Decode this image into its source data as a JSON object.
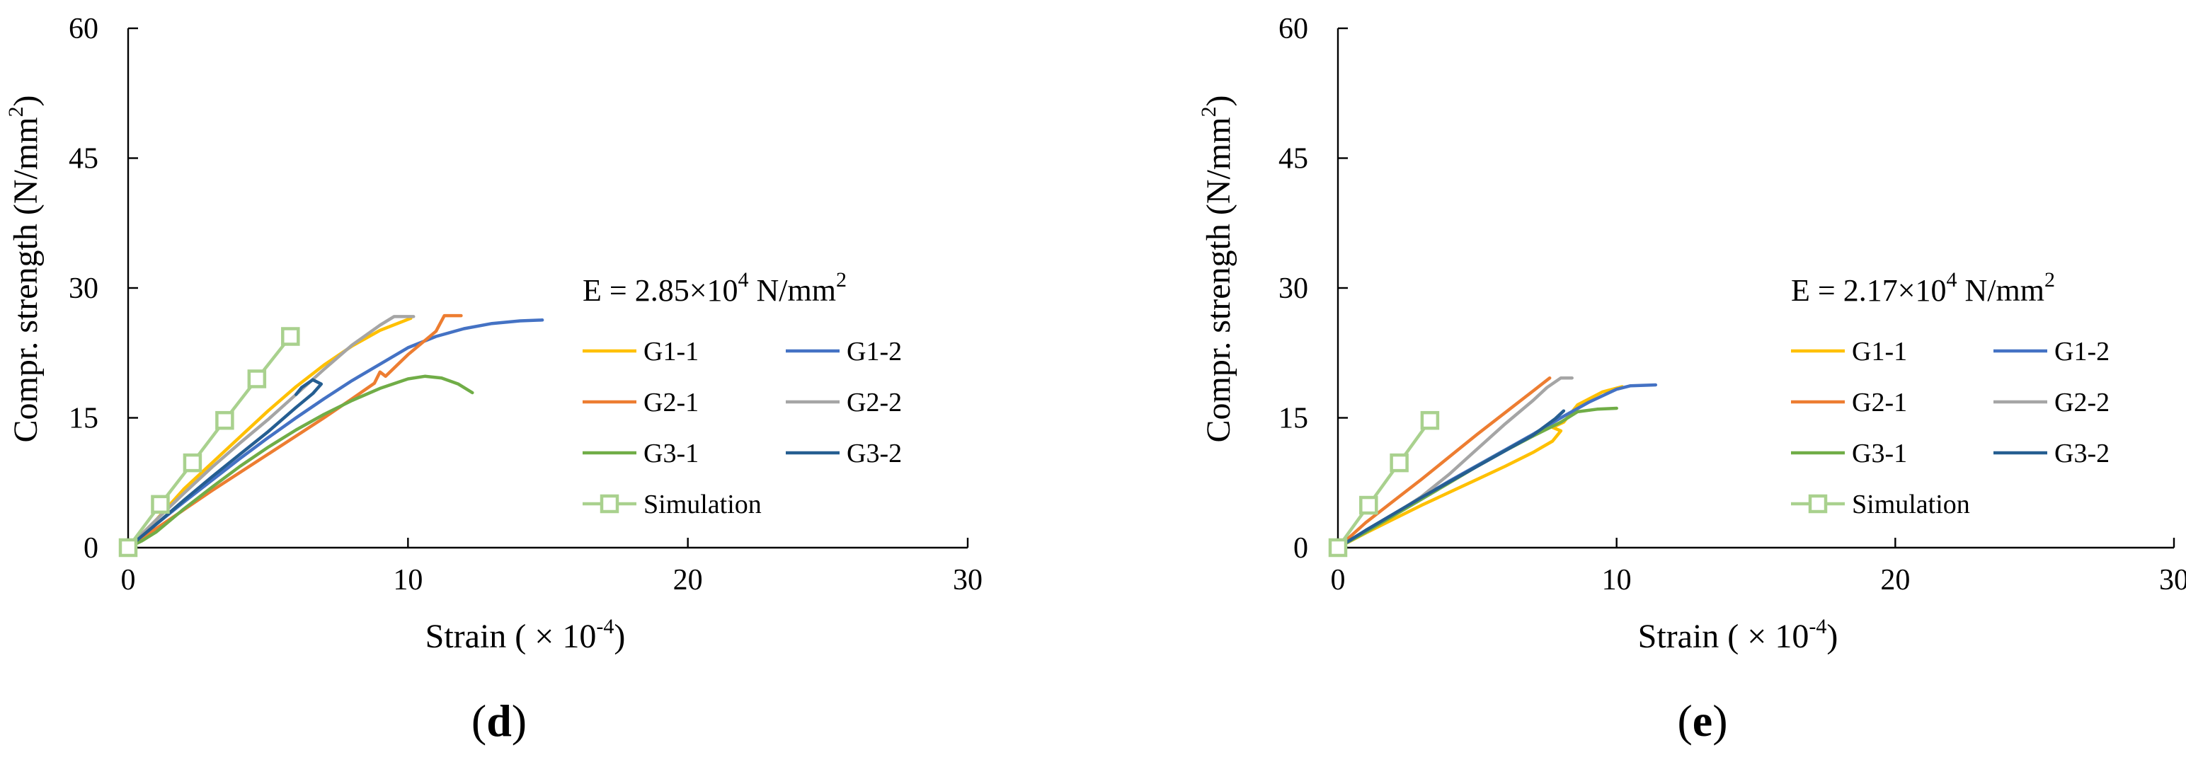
{
  "colors": {
    "G1-1": "#FFC000",
    "G1-2": "#4472C4",
    "G2-1": "#ED7D31",
    "G2-2": "#A5A5A5",
    "G3-1": "#70AD47",
    "G3-2": "#255E91",
    "Simulation": "#A9D18E"
  },
  "chart_data": [
    {
      "type": "line",
      "panel_label": "(d)",
      "panel_letter": "d",
      "xlabel": "Strain ( × 10",
      "xlabel_exp": "-4",
      "xlabel_close": ")",
      "ylabel": "Compr. strength (N/mm",
      "ylabel_exp": "2",
      "ylabel_close": ")",
      "xlim": [
        0,
        30
      ],
      "ylim": [
        0,
        60
      ],
      "xticks": [
        0,
        10,
        20,
        30
      ],
      "yticks": [
        0,
        15,
        30,
        45,
        60
      ],
      "annotation": {
        "prefix": "E = 2.85×10",
        "exp": "4",
        "suffix": " N/mm",
        "suffix_exp": "2"
      },
      "series": [
        {
          "name": "G1-1",
          "x": [
            0,
            1,
            2,
            3,
            4,
            5,
            6,
            7,
            8,
            9,
            10.1
          ],
          "y": [
            0,
            3.2,
            6.8,
            9.8,
            12.8,
            15.8,
            18.6,
            21.1,
            23.3,
            25.1,
            26.5
          ]
        },
        {
          "name": "G1-2",
          "x": [
            0,
            1,
            2,
            3,
            4,
            5,
            6,
            7,
            8,
            9,
            10,
            11,
            12,
            13,
            14,
            14.8
          ],
          "y": [
            0,
            2.7,
            5.3,
            7.8,
            10.3,
            12.7,
            15.0,
            17.2,
            19.3,
            21.2,
            23.1,
            24.4,
            25.3,
            25.9,
            26.2,
            26.3
          ]
        },
        {
          "name": "G2-1",
          "x": [
            0,
            1,
            2,
            3,
            4,
            5,
            6,
            7,
            8,
            8.8,
            9,
            9.2,
            10,
            11,
            11.3,
            11.9
          ],
          "y": [
            0,
            2.2,
            4.4,
            6.6,
            8.7,
            10.8,
            12.9,
            15.0,
            17.2,
            19.0,
            20.3,
            19.8,
            22.3,
            25.0,
            26.8,
            26.8
          ]
        },
        {
          "name": "G2-2",
          "x": [
            0,
            1,
            2,
            3,
            4,
            5,
            6,
            7,
            8,
            9,
            9.5,
            10.2
          ],
          "y": [
            0,
            3.2,
            6.3,
            9.3,
            12.1,
            14.8,
            17.7,
            20.6,
            23.4,
            25.7,
            26.7,
            26.7
          ]
        },
        {
          "name": "G3-1",
          "x": [
            0,
            0.5,
            1,
            2,
            3,
            4,
            5,
            6,
            7,
            8,
            9,
            10,
            10.6,
            11.2,
            11.8,
            12.3
          ],
          "y": [
            0,
            0.8,
            1.8,
            4.5,
            7.0,
            9.4,
            11.6,
            13.6,
            15.4,
            17.0,
            18.4,
            19.5,
            19.8,
            19.6,
            18.9,
            17.9
          ]
        },
        {
          "name": "G3-2",
          "x": [
            0,
            1,
            2,
            3,
            4,
            5,
            6,
            6.6,
            6.9,
            6.6,
            6.2,
            6.0
          ],
          "y": [
            0,
            2.7,
            5.5,
            8.2,
            10.8,
            13.4,
            16.2,
            17.8,
            18.9,
            19.4,
            18.5,
            17.7
          ]
        }
      ],
      "simulation": {
        "name": "Simulation",
        "x": [
          0,
          1.15,
          2.3,
          3.45,
          4.6,
          5.8
        ],
        "y": [
          0,
          5.0,
          9.8,
          14.7,
          19.5,
          24.4
        ]
      }
    },
    {
      "type": "line",
      "panel_label": "(e)",
      "panel_letter": "e",
      "xlabel": "Strain ( × 10",
      "xlabel_exp": "-4",
      "xlabel_close": ")",
      "ylabel": "Compr. strength (N/mm",
      "ylabel_exp": "2",
      "ylabel_close": ")",
      "xlim": [
        0,
        30
      ],
      "ylim": [
        0,
        60
      ],
      "xticks": [
        0,
        10,
        20,
        30
      ],
      "yticks": [
        0,
        15,
        30,
        45,
        60
      ],
      "annotation": {
        "prefix": "E = 2.17×10",
        "exp": "4",
        "suffix": " N/mm",
        "suffix_exp": "2"
      },
      "series": [
        {
          "name": "G1-1",
          "x": [
            0,
            1,
            2,
            3,
            4,
            5,
            6,
            7,
            7.7,
            8.0,
            7.7,
            8.1,
            8.6,
            9.5,
            10.2
          ],
          "y": [
            0,
            1.7,
            3.3,
            4.9,
            6.4,
            7.9,
            9.4,
            11.0,
            12.3,
            13.5,
            13.9,
            14.5,
            16.5,
            18.0,
            18.6
          ]
        },
        {
          "name": "G1-2",
          "x": [
            0,
            1,
            2,
            3,
            4,
            5,
            6,
            7,
            8,
            9,
            10,
            10.5,
            11.4
          ],
          "y": [
            0,
            2.0,
            3.9,
            5.8,
            7.7,
            9.5,
            11.3,
            13.1,
            15.0,
            16.8,
            18.3,
            18.7,
            18.8
          ]
        },
        {
          "name": "G2-1",
          "x": [
            0,
            1,
            2,
            3,
            4,
            5,
            6,
            7,
            7.6
          ],
          "y": [
            0,
            2.9,
            5.4,
            7.9,
            10.5,
            13.1,
            15.6,
            18.1,
            19.6
          ]
        },
        {
          "name": "G2-2",
          "x": [
            0,
            1,
            2,
            3,
            4,
            5,
            6,
            7,
            7.5,
            8.0,
            8.4
          ],
          "y": [
            0,
            1.8,
            3.8,
            5.9,
            8.5,
            11.4,
            14.3,
            17.0,
            18.5,
            19.6,
            19.6
          ]
        },
        {
          "name": "G3-1",
          "x": [
            0,
            1,
            2,
            3,
            4,
            5,
            6,
            7,
            8,
            8.6,
            9.3,
            10
          ],
          "y": [
            0,
            1.8,
            3.7,
            5.6,
            7.5,
            9.4,
            11.2,
            12.9,
            14.5,
            15.7,
            16.0,
            16.1
          ]
        },
        {
          "name": "G3-2",
          "x": [
            0,
            1,
            2,
            3,
            4,
            5,
            6,
            7,
            7.8,
            8.1
          ],
          "y": [
            0,
            2.0,
            3.9,
            5.8,
            7.6,
            9.4,
            11.2,
            13.0,
            14.9,
            15.8
          ]
        }
      ],
      "simulation": {
        "name": "Simulation",
        "x": [
          0,
          1.1,
          2.2,
          3.3
        ],
        "y": [
          0,
          4.9,
          9.8,
          14.7
        ]
      }
    }
  ]
}
